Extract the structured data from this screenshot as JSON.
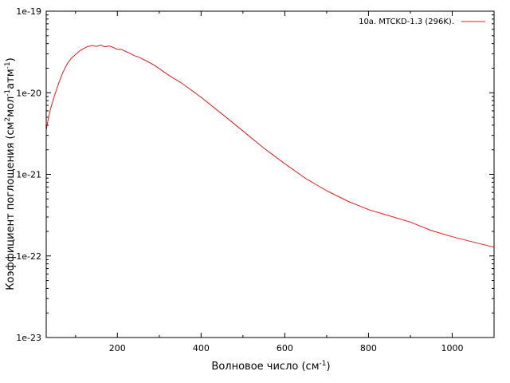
{
  "chart_data": {
    "type": "line",
    "xlabel": {
      "text": "Волновое число (см",
      "sup": "-1",
      "tail": ")"
    },
    "ylabel": {
      "parts": [
        {
          "t": "Коэффициент поглощения (см",
          "sup": false
        },
        {
          "t": "2",
          "sup": true
        },
        {
          "t": "мол",
          "sup": false
        },
        {
          "t": "-1",
          "sup": true
        },
        {
          "t": "атм",
          "sup": false
        },
        {
          "t": "-1",
          "sup": true
        },
        {
          "t": ")",
          "sup": false
        }
      ]
    },
    "xlim": [
      30,
      1100
    ],
    "ylim": [
      1e-23,
      1e-19
    ],
    "yscale": "log",
    "grid": false,
    "legend_position": "top-right",
    "x_ticks": [
      {
        "value": 200,
        "label": "200"
      },
      {
        "value": 400,
        "label": "400"
      },
      {
        "value": 600,
        "label": "600"
      },
      {
        "value": 800,
        "label": "800"
      },
      {
        "value": 1000,
        "label": "1000"
      }
    ],
    "y_ticks": [
      {
        "value": 1e-19,
        "label": "1e-19"
      },
      {
        "value": 1e-20,
        "label": "1e-20"
      },
      {
        "value": 1e-21,
        "label": "1e-21"
      },
      {
        "value": 1e-22,
        "label": "1e-22"
      },
      {
        "value": 1e-23,
        "label": "1e-23"
      }
    ],
    "series": [
      {
        "name": "10a. MTCKD-1.3 (296K).",
        "color": "#e41a1c",
        "x": [
          30,
          35,
          40,
          50,
          60,
          70,
          80,
          90,
          100,
          110,
          120,
          130,
          140,
          150,
          160,
          170,
          180,
          190,
          200,
          210,
          220,
          230,
          240,
          250,
          270,
          290,
          310,
          330,
          350,
          380,
          400,
          450,
          500,
          550,
          600,
          650,
          700,
          750,
          800,
          850,
          900,
          950,
          1000,
          1050,
          1100
        ],
        "y": [
          3.5e-21,
          4.8e-21,
          6.3e-21,
          9.3e-21,
          1.32e-20,
          1.78e-20,
          2.25e-20,
          2.65e-20,
          2.95e-20,
          3.25e-20,
          3.5e-20,
          3.7e-20,
          3.8e-20,
          3.7e-20,
          3.85e-20,
          3.65e-20,
          3.75e-20,
          3.6e-20,
          3.4e-20,
          3.4e-20,
          3.2e-20,
          3.05e-20,
          2.85e-20,
          2.75e-20,
          2.45e-20,
          2.15e-20,
          1.82e-20,
          1.55e-20,
          1.35e-20,
          1.05e-20,
          8.8e-21,
          5.5e-21,
          3.4e-21,
          2.1e-21,
          1.35e-21,
          8.9e-22,
          6.3e-22,
          4.7e-22,
          3.7e-22,
          3.1e-22,
          2.6e-22,
          2.05e-22,
          1.72e-22,
          1.48e-22,
          1.28e-22
        ]
      }
    ]
  }
}
